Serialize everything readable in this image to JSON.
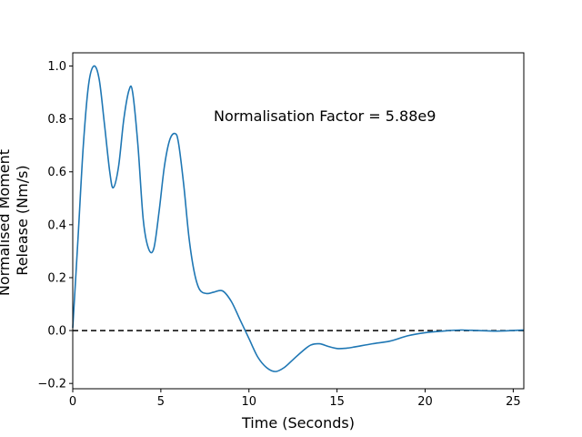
{
  "chart_data": {
    "type": "line",
    "title": "",
    "xlabel": "Time (Seconds)",
    "ylabel_lines": [
      "Normalised Moment",
      "Release (Nm/s)"
    ],
    "xlim": [
      0,
      25.6
    ],
    "ylim": [
      -0.22,
      1.05
    ],
    "xticks": [
      0,
      5,
      10,
      15,
      20,
      25
    ],
    "yticks": [
      -0.2,
      0.0,
      0.2,
      0.4,
      0.6,
      0.8,
      1.0
    ],
    "xtick_labels": [
      "0",
      "5",
      "10",
      "15",
      "20",
      "25"
    ],
    "ytick_labels": [
      "−0.2",
      "0.0",
      "0.2",
      "0.4",
      "0.6",
      "0.8",
      "1.0"
    ],
    "grid": false,
    "legend": null,
    "annotation": {
      "text": "Normalisation Factor = 5.88e9",
      "x": 8.0,
      "y": 0.81
    },
    "reference_line": {
      "y": 0.0,
      "style": "dashed",
      "color": "#000000"
    },
    "series": [
      {
        "color": "#1f77b4",
        "x": [
          0,
          0.3,
          0.6,
          0.9,
          1.2,
          1.5,
          1.8,
          2.1,
          2.3,
          2.6,
          2.9,
          3.2,
          3.4,
          3.7,
          4.0,
          4.3,
          4.6,
          4.9,
          5.2,
          5.5,
          5.8,
          6.0,
          6.3,
          6.6,
          6.9,
          7.2,
          7.6,
          8.0,
          8.5,
          9.0,
          9.5,
          10.0,
          10.5,
          11.0,
          11.5,
          12.0,
          12.5,
          13.0,
          13.5,
          14.0,
          14.5,
          15.0,
          15.5,
          16.0,
          17.0,
          18.0,
          19.0,
          20.0,
          21.0,
          22.0,
          23.0,
          24.0,
          25.0,
          25.6
        ],
        "y": [
          0.01,
          0.35,
          0.7,
          0.93,
          1.0,
          0.95,
          0.78,
          0.6,
          0.54,
          0.62,
          0.8,
          0.91,
          0.9,
          0.7,
          0.42,
          0.31,
          0.31,
          0.45,
          0.62,
          0.72,
          0.745,
          0.71,
          0.55,
          0.35,
          0.22,
          0.155,
          0.14,
          0.145,
          0.15,
          0.11,
          0.04,
          -0.03,
          -0.1,
          -0.14,
          -0.155,
          -0.14,
          -0.11,
          -0.08,
          -0.055,
          -0.05,
          -0.06,
          -0.068,
          -0.067,
          -0.062,
          -0.05,
          -0.04,
          -0.02,
          -0.008,
          -0.002,
          0.002,
          0.0,
          -0.002,
          0.0,
          0.002
        ]
      }
    ]
  }
}
